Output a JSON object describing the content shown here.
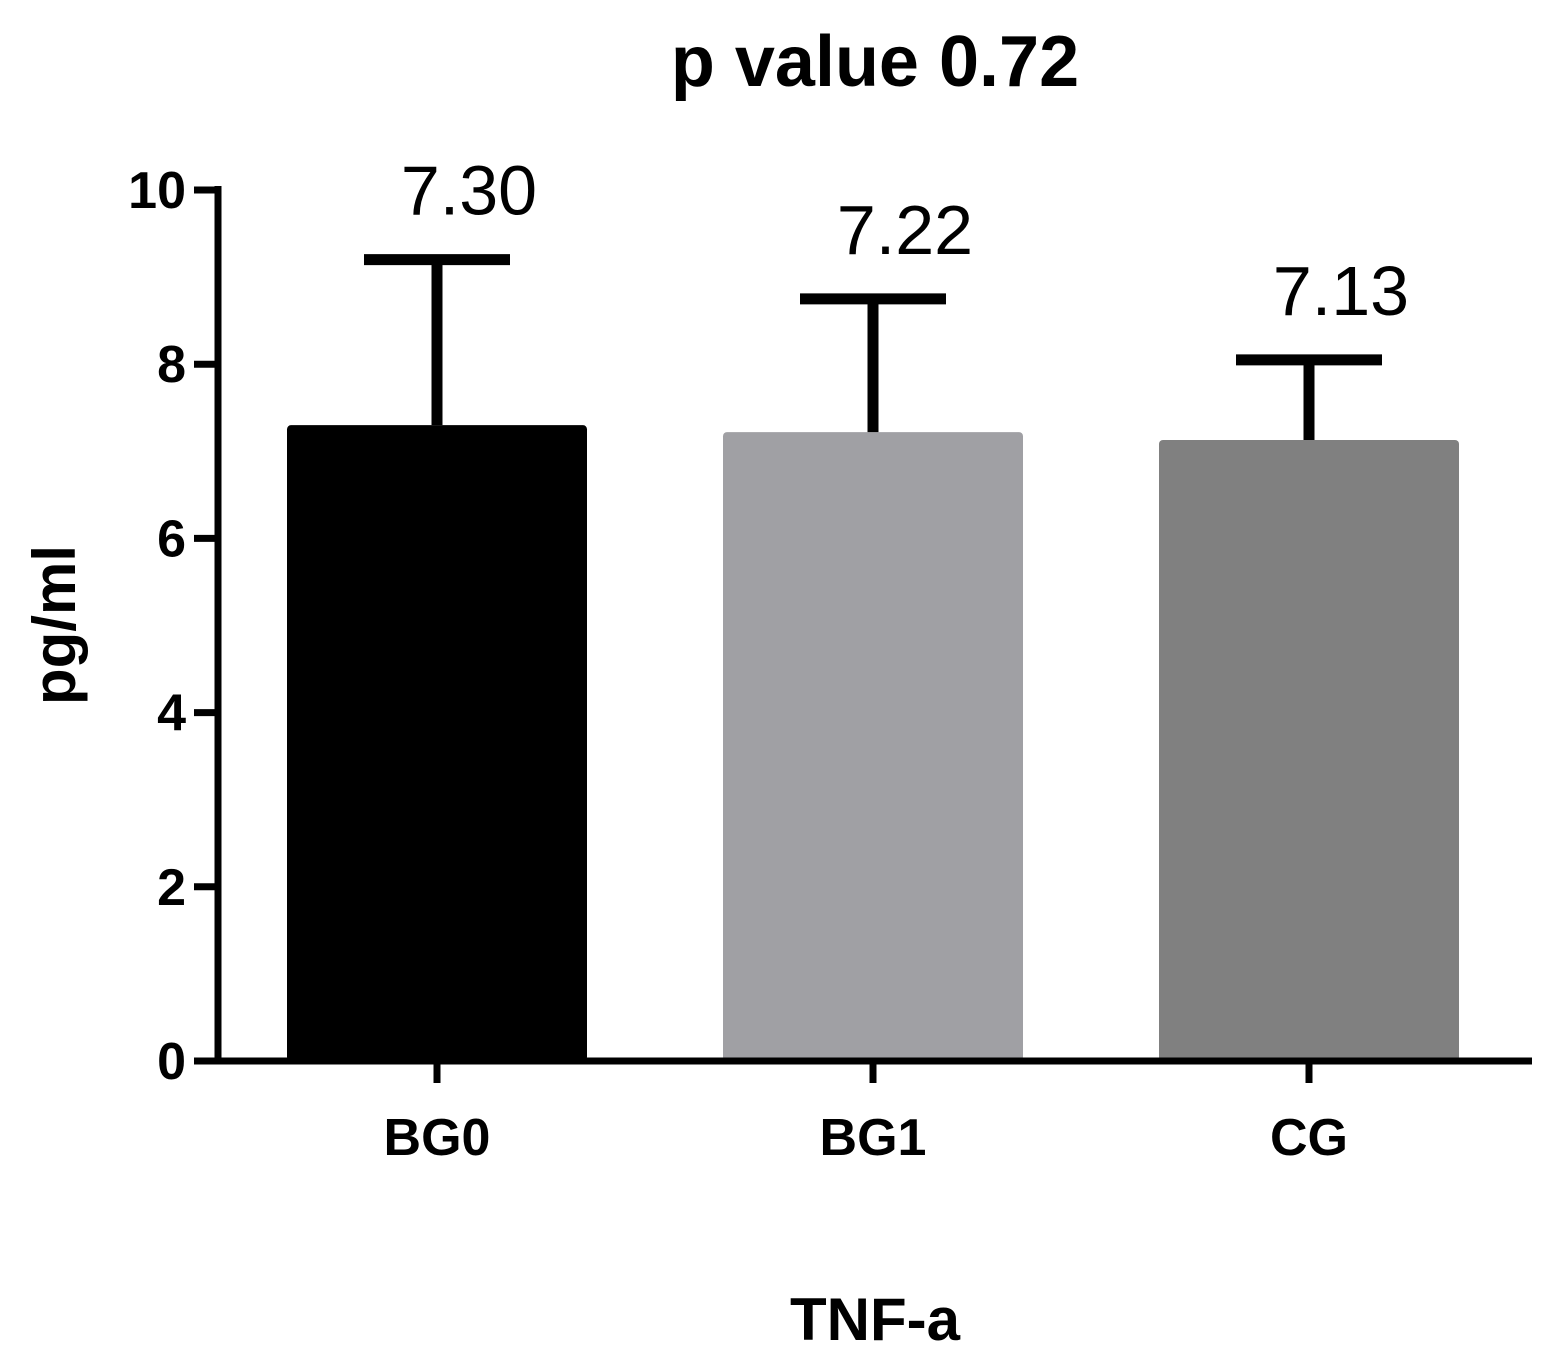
{
  "chart_data": {
    "type": "bar",
    "title": "p value 0.72",
    "xlabel": "TNF-a",
    "ylabel": "pg/ml",
    "categories": [
      "BG0",
      "BG1",
      "CG"
    ],
    "values": [
      7.3,
      7.22,
      7.13
    ],
    "error_upper": [
      9.2,
      8.75,
      8.05
    ],
    "data_labels": [
      "7.30",
      "7.22",
      "7.13"
    ],
    "colors": [
      "#000000",
      "#a0a0a4",
      "#808080"
    ],
    "ylim": [
      0,
      10
    ],
    "yticks": [
      0,
      2,
      4,
      6,
      8,
      10
    ],
    "ytick_labels": [
      "0",
      "2",
      "4",
      "6",
      "8",
      "10"
    ],
    "grid": false
  }
}
